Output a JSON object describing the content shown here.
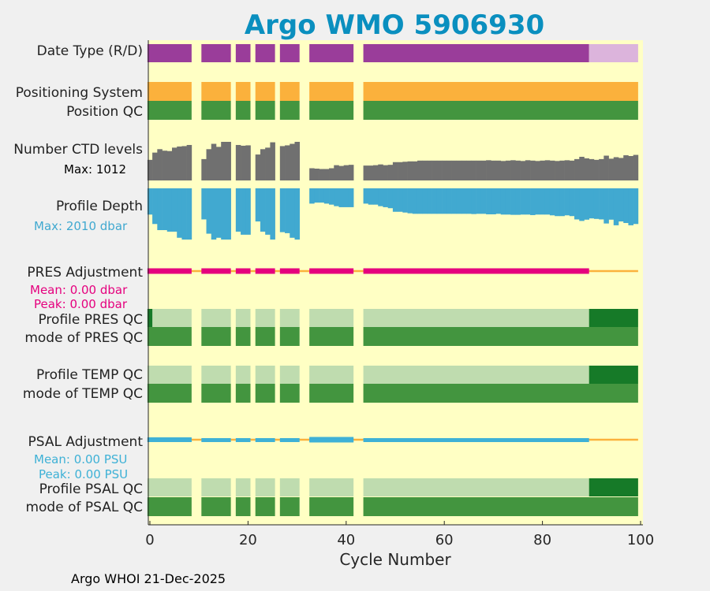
{
  "chart_data": {
    "type": "bar",
    "title": "Argo WMO 5906930",
    "xlabel": "Cycle Number",
    "xlim": [
      0,
      100
    ],
    "xticks": [
      0,
      20,
      40,
      60,
      80,
      100
    ],
    "footer": "Argo WHOI 21-Dec-2025",
    "colors": {
      "background": "#ffffc4",
      "realtime": "#9a3d9a",
      "delayed": "#dcb4dc",
      "positioning": "#fbb13c",
      "qc_good": "#43953f",
      "qc_light": "#bfdcaf",
      "qc_dark": "#167a28",
      "ctd": "#707070",
      "depth": "#41a9d0",
      "pres_adj": "#e5007e",
      "psal_adj": "#3eb1d6",
      "adj_line": "#fbb13c",
      "title": "#0a8fbf"
    },
    "rows": {
      "date_type": {
        "label": "Date Type (R/D)",
        "realtime_cycles": [
          [
            0,
            8
          ],
          [
            11,
            16
          ],
          [
            18,
            20
          ],
          [
            22,
            25
          ],
          [
            27,
            30
          ],
          [
            33,
            41
          ],
          [
            44,
            89
          ]
        ],
        "delayed_cycles": [
          [
            90,
            99
          ]
        ]
      },
      "positioning": {
        "label": "Positioning System"
      },
      "position_qc": {
        "label": "Position QC"
      },
      "ctd_levels": {
        "label": "Number CTD levels",
        "max_label": "Max: 1012",
        "max": 1012
      },
      "profile_depth": {
        "label": "Profile Depth",
        "max_label": "Max: 2010 dbar",
        "max": 2010
      },
      "pres_adj": {
        "label": "PRES Adjustment",
        "mean_label": "Mean: 0.00 dbar",
        "peak_label": "Peak: 0.00 dbar"
      },
      "profile_pres_qc": {
        "label": "Profile PRES QC"
      },
      "mode_pres_qc": {
        "label": "mode of PRES QC"
      },
      "profile_temp_qc": {
        "label": "Profile TEMP QC"
      },
      "mode_temp_qc": {
        "label": "mode of TEMP QC"
      },
      "psal_adj": {
        "label": "PSAL Adjustment",
        "mean_label": "Mean: 0.00 PSU",
        "peak_label": "Peak: 0.00 PSU"
      },
      "profile_psal_qc": {
        "label": "Profile PSAL QC"
      },
      "mode_psal_qc": {
        "label": "mode of PSAL QC"
      }
    },
    "cycles_present": [
      [
        0,
        8
      ],
      [
        11,
        16
      ],
      [
        18,
        20
      ],
      [
        22,
        25
      ],
      [
        27,
        30
      ],
      [
        33,
        41
      ],
      [
        44,
        99
      ]
    ],
    "ctd_levels": [
      [
        0,
        540
      ],
      [
        1,
        730
      ],
      [
        2,
        820
      ],
      [
        3,
        780
      ],
      [
        4,
        770
      ],
      [
        5,
        860
      ],
      [
        6,
        890
      ],
      [
        7,
        900
      ],
      [
        8,
        930
      ],
      [
        11,
        560
      ],
      [
        12,
        820
      ],
      [
        13,
        960
      ],
      [
        14,
        880
      ],
      [
        15,
        1012
      ],
      [
        16,
        1012
      ],
      [
        18,
        930
      ],
      [
        19,
        910
      ],
      [
        20,
        920
      ],
      [
        22,
        680
      ],
      [
        23,
        820
      ],
      [
        24,
        860
      ],
      [
        25,
        1000
      ],
      [
        27,
        900
      ],
      [
        28,
        920
      ],
      [
        29,
        960
      ],
      [
        30,
        1012
      ],
      [
        33,
        320
      ],
      [
        34,
        310
      ],
      [
        35,
        300
      ],
      [
        36,
        300
      ],
      [
        37,
        320
      ],
      [
        38,
        400
      ],
      [
        39,
        380
      ],
      [
        40,
        400
      ],
      [
        41,
        410
      ],
      [
        44,
        390
      ],
      [
        45,
        390
      ],
      [
        46,
        400
      ],
      [
        47,
        420
      ],
      [
        48,
        400
      ],
      [
        49,
        410
      ],
      [
        50,
        480
      ],
      [
        51,
        480
      ],
      [
        52,
        490
      ],
      [
        53,
        500
      ],
      [
        54,
        500
      ],
      [
        55,
        520
      ],
      [
        56,
        520
      ],
      [
        57,
        520
      ],
      [
        58,
        520
      ],
      [
        59,
        520
      ],
      [
        60,
        520
      ],
      [
        61,
        520
      ],
      [
        62,
        520
      ],
      [
        63,
        520
      ],
      [
        64,
        520
      ],
      [
        65,
        520
      ],
      [
        66,
        520
      ],
      [
        67,
        520
      ],
      [
        68,
        520
      ],
      [
        69,
        530
      ],
      [
        70,
        520
      ],
      [
        71,
        520
      ],
      [
        72,
        510
      ],
      [
        73,
        520
      ],
      [
        74,
        530
      ],
      [
        75,
        520
      ],
      [
        76,
        510
      ],
      [
        77,
        530
      ],
      [
        78,
        520
      ],
      [
        79,
        510
      ],
      [
        80,
        520
      ],
      [
        81,
        530
      ],
      [
        82,
        520
      ],
      [
        83,
        510
      ],
      [
        84,
        520
      ],
      [
        85,
        530
      ],
      [
        86,
        520
      ],
      [
        87,
        560
      ],
      [
        88,
        620
      ],
      [
        89,
        580
      ],
      [
        90,
        560
      ],
      [
        91,
        540
      ],
      [
        92,
        560
      ],
      [
        93,
        650
      ],
      [
        94,
        570
      ],
      [
        95,
        610
      ],
      [
        96,
        590
      ],
      [
        97,
        660
      ],
      [
        98,
        640
      ],
      [
        99,
        670
      ]
    ],
    "profile_depth": [
      [
        0,
        1030
      ],
      [
        1,
        1400
      ],
      [
        2,
        1640
      ],
      [
        3,
        1640
      ],
      [
        4,
        1700
      ],
      [
        5,
        1700
      ],
      [
        6,
        1940
      ],
      [
        7,
        2010
      ],
      [
        8,
        2010
      ],
      [
        11,
        1220
      ],
      [
        12,
        1780
      ],
      [
        13,
        2010
      ],
      [
        14,
        1940
      ],
      [
        15,
        2010
      ],
      [
        16,
        2010
      ],
      [
        18,
        1700
      ],
      [
        19,
        1820
      ],
      [
        20,
        1820
      ],
      [
        22,
        1300
      ],
      [
        23,
        1700
      ],
      [
        24,
        1820
      ],
      [
        25,
        2010
      ],
      [
        27,
        1720
      ],
      [
        28,
        1760
      ],
      [
        29,
        1940
      ],
      [
        30,
        2010
      ],
      [
        33,
        600
      ],
      [
        34,
        560
      ],
      [
        35,
        560
      ],
      [
        36,
        600
      ],
      [
        37,
        640
      ],
      [
        38,
        700
      ],
      [
        39,
        740
      ],
      [
        40,
        740
      ],
      [
        41,
        740
      ],
      [
        44,
        600
      ],
      [
        45,
        640
      ],
      [
        46,
        640
      ],
      [
        47,
        700
      ],
      [
        48,
        740
      ],
      [
        49,
        780
      ],
      [
        50,
        920
      ],
      [
        51,
        920
      ],
      [
        52,
        950
      ],
      [
        53,
        980
      ],
      [
        54,
        1000
      ],
      [
        55,
        1000
      ],
      [
        56,
        1000
      ],
      [
        57,
        1000
      ],
      [
        58,
        1000
      ],
      [
        59,
        1000
      ],
      [
        60,
        1000
      ],
      [
        61,
        1000
      ],
      [
        62,
        1000
      ],
      [
        63,
        1000
      ],
      [
        64,
        1000
      ],
      [
        65,
        1000
      ],
      [
        66,
        1010
      ],
      [
        67,
        1000
      ],
      [
        68,
        1000
      ],
      [
        69,
        1020
      ],
      [
        70,
        1020
      ],
      [
        71,
        1000
      ],
      [
        72,
        1030
      ],
      [
        73,
        1030
      ],
      [
        74,
        1040
      ],
      [
        75,
        1040
      ],
      [
        76,
        1030
      ],
      [
        77,
        1030
      ],
      [
        78,
        1050
      ],
      [
        79,
        1030
      ],
      [
        80,
        1030
      ],
      [
        81,
        1030
      ],
      [
        82,
        1060
      ],
      [
        83,
        1090
      ],
      [
        84,
        1090
      ],
      [
        85,
        1060
      ],
      [
        86,
        1090
      ],
      [
        87,
        1220
      ],
      [
        88,
        1280
      ],
      [
        89,
        1230
      ],
      [
        90,
        1180
      ],
      [
        91,
        1200
      ],
      [
        92,
        1220
      ],
      [
        93,
        1380
      ],
      [
        94,
        1230
      ],
      [
        95,
        1450
      ],
      [
        96,
        1300
      ],
      [
        97,
        1360
      ],
      [
        98,
        1450
      ],
      [
        99,
        1400
      ]
    ]
  }
}
